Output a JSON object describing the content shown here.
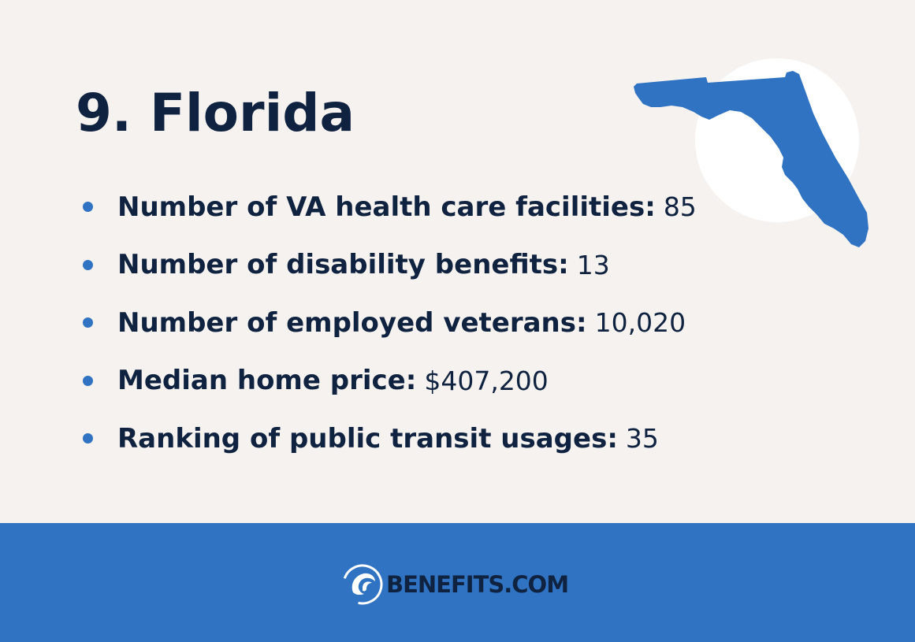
{
  "title": "9. Florida",
  "stats": [
    {
      "label": "Number of VA health care facilities:",
      "value": "85"
    },
    {
      "label": "Number of disability benefits:",
      "value": "13"
    },
    {
      "label": "Number of employed veterans:",
      "value": "10,020"
    },
    {
      "label": "Median home price:",
      "value": "$407,200"
    },
    {
      "label": "Ranking of public transit usages:",
      "value": "35"
    }
  ],
  "map": {
    "icon": "florida-map-icon",
    "color": "#2f73c2",
    "circle_color": "#ffffff"
  },
  "footer": {
    "brand": "BENEFITS.COM",
    "logo_icon": "benefits-wave-logo-icon",
    "background": "#2f73c2"
  },
  "colors": {
    "background": "#f5f2ef",
    "text": "#0f2240",
    "accent": "#2f73c2"
  }
}
